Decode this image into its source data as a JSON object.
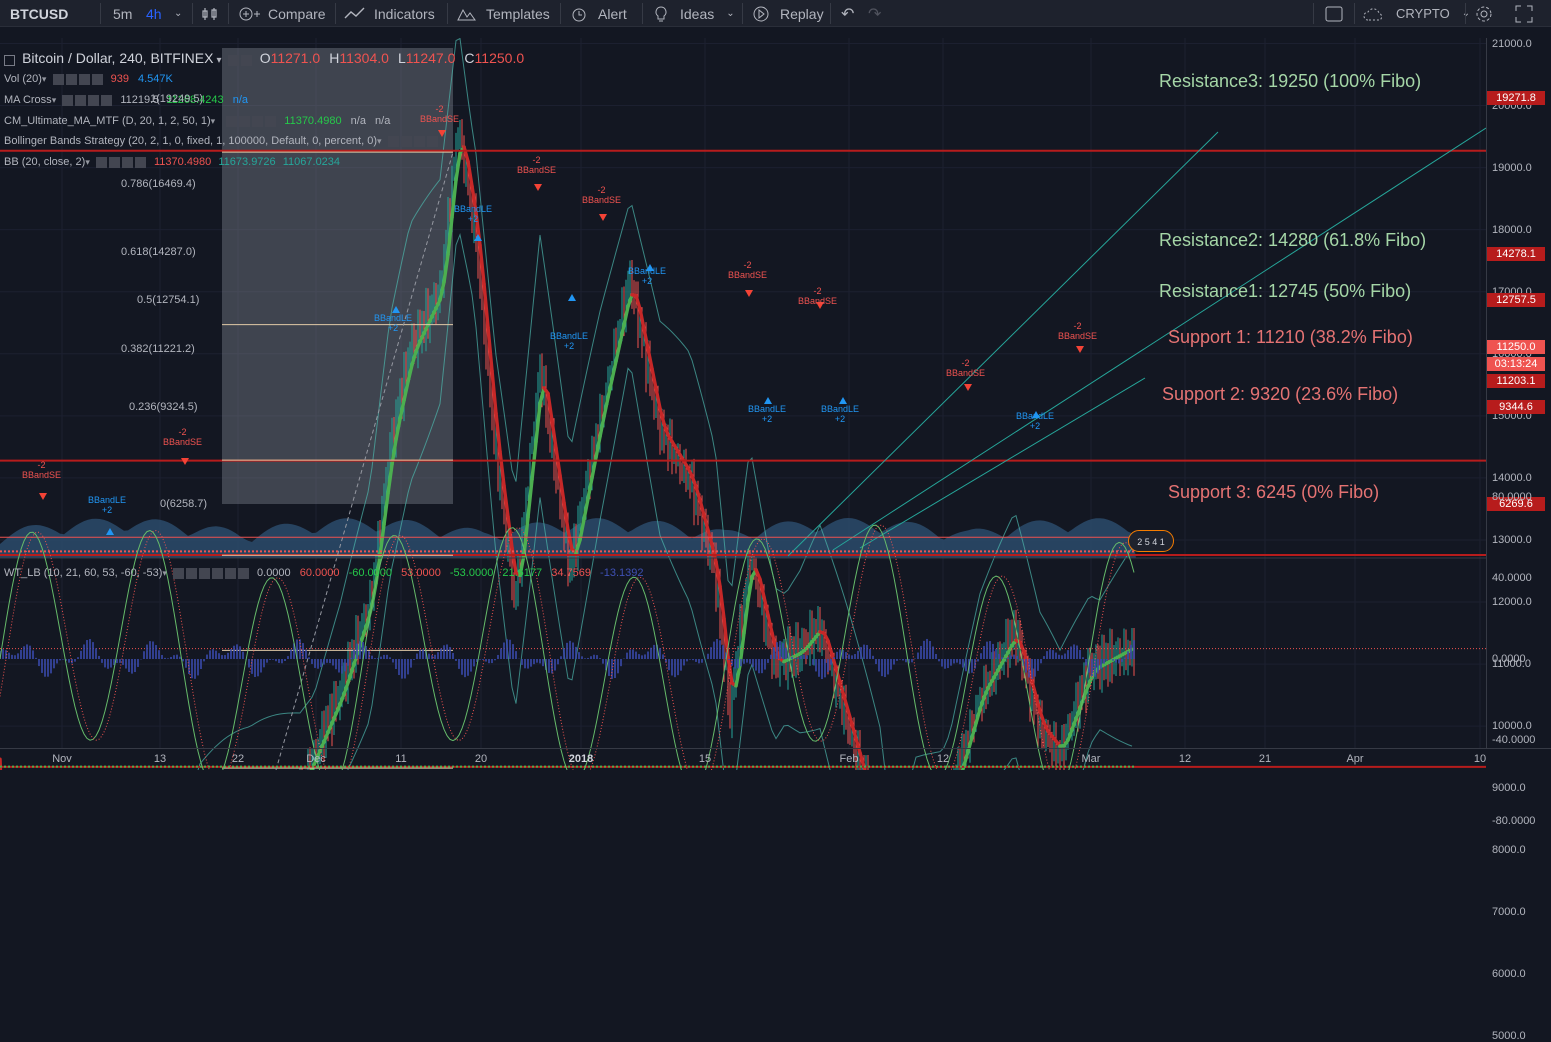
{
  "toolbar": {
    "symbol": "BTCUSD",
    "interval_5m": "5m",
    "interval_4h": "4h",
    "compare": "Compare",
    "indicators": "Indicators",
    "templates": "Templates",
    "alert": "Alert",
    "ideas": "Ideas",
    "replay": "Replay",
    "crypto": "CRYPTO"
  },
  "legend": {
    "title": "Bitcoin / Dollar, 240, BITFINEX",
    "open_label": "O",
    "open": "11271.0",
    "high_label": "H",
    "high": "11304.0",
    "low_label": "L",
    "low": "11247.0",
    "close_label": "C",
    "close": "11250.0",
    "vol_name": "Vol (20)",
    "vol_v1": "939",
    "vol_v2": "4.547K",
    "ma_name": "MA Cross",
    "ma_v1": "11219.5",
    "ma_v2": "11268.4243",
    "ma_v3": "n/a",
    "cm_name": "CM_Ultimate_MA_MTF (D, 20, 1, 2, 50, 1)",
    "cm_v1": "11370.4980",
    "cm_v2": "n/a",
    "cm_v3": "n/a",
    "bbs_name": "Bollinger Bands Strategy (20, 2, 1, 0, fixed, 1, 100000, Default, 0, percent, 0)",
    "bb_name": "BB (20, close, 2)",
    "bb_v1": "11370.4980",
    "bb_v2": "11673.9726",
    "bb_v3": "11067.0234"
  },
  "osc_legend": {
    "name": "WT_LB (10, 21, 60, 53, -60, -53)",
    "v1": "0.0000",
    "v2": "60.0000",
    "v3": "-60.0000",
    "v4": "53.0000",
    "v5": "-53.0000",
    "v6": "21.6177",
    "v7": "34.7569",
    "v8": "-13.1392"
  },
  "annotations": {
    "r3": "Resistance3: 19250 (100% Fibo)",
    "r2": "Resistance2: 14280  (61.8% Fibo)",
    "r1": "Resistance1: 12745 (50% Fibo)",
    "s1": "Support 1: 11210 (38.2% Fibo)",
    "s2": "Support 2: 9320 (23.6% Fibo)",
    "s3": "Support 3: 6245 (0% Fibo)"
  },
  "fib_labels": [
    {
      "text": "1(19249.5)"
    },
    {
      "text": "0.786(16469.4)"
    },
    {
      "text": "0.618(14287.0)"
    },
    {
      "text": "0.5(12754.1)"
    },
    {
      "text": "0.382(11221.2)"
    },
    {
      "text": "0.236(9324.5)"
    },
    {
      "text": "0(6258.7)"
    }
  ],
  "price_axis": [
    "21000.0",
    "20000.0",
    "19000.0",
    "18000.0",
    "17000.0",
    "16000.0",
    "15000.0",
    "14000.0",
    "13000.0",
    "12000.0",
    "11000.0",
    "10000.0",
    "9000.0",
    "8000.0",
    "7000.0",
    "6000.0",
    "5000.0"
  ],
  "price_tags": [
    {
      "text": "19271.8",
      "color": "#b71c1c"
    },
    {
      "text": "14278.1",
      "color": "#b71c1c"
    },
    {
      "text": "12757.5",
      "color": "#b71c1c"
    },
    {
      "text": "11250.0",
      "color": "#ef5350"
    },
    {
      "text": "03:13:24",
      "color": "#ef5350"
    },
    {
      "text": "11203.1",
      "color": "#b71c1c"
    },
    {
      "text": "9344.6",
      "color": "#b71c1c"
    },
    {
      "text": "6269.6",
      "color": "#b71c1c"
    }
  ],
  "osc_axis": [
    "80.0000",
    "40.0000",
    "0.0000",
    "-40.0000",
    "-80.0000"
  ],
  "time_axis": [
    "Nov",
    "13",
    "22",
    "Dec",
    "11",
    "20",
    "2018",
    "15",
    "Feb",
    "12",
    "Mar",
    "12",
    "21",
    "Apr",
    "10"
  ],
  "signals": {
    "short": "BBandSE",
    "long": "BBandLE",
    "minus": "-2",
    "plus": "+2"
  },
  "badge": "2 5 4 1",
  "colors": {
    "bg": "#131722",
    "red_line": "#b71c1c",
    "fib_line": "#d4a373",
    "trend": "#26a69a"
  }
}
